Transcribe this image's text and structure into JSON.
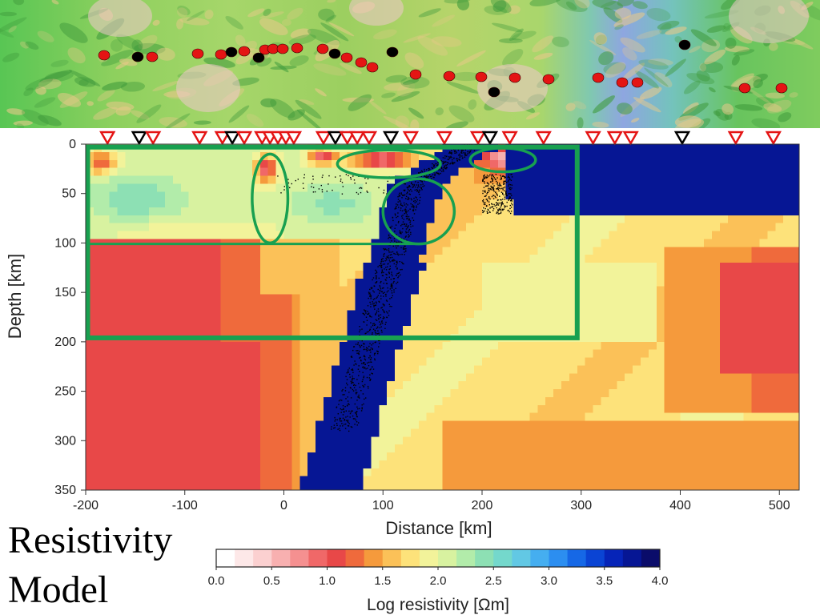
{
  "chart_data": {
    "type": "heatmap",
    "title": "Resistivity Model",
    "title_lines": [
      "Resistivity",
      "Model"
    ],
    "xlabel": "Distance [km]",
    "ylabel": "Depth [km]",
    "xlim": [
      -200,
      520
    ],
    "ylim": [
      350,
      0
    ],
    "x_ticks": [
      -200,
      -100,
      0,
      100,
      200,
      300,
      400,
      500
    ],
    "y_ticks": [
      0,
      50,
      100,
      150,
      200,
      250,
      300,
      350
    ],
    "colorbar": {
      "label": "Log resistivity [Ωm]",
      "range": [
        0.0,
        4.0
      ],
      "ticks": [
        "0.0",
        "0.5",
        "1.0",
        "1.5",
        "2.0",
        "2.5",
        "3.0",
        "3.5",
        "4.0"
      ],
      "colors": [
        "#ffffff",
        "#fde8e8",
        "#fbd0d0",
        "#f8b0b0",
        "#f59090",
        "#f06868",
        "#e84848",
        "#ef6a3c",
        "#f59a3c",
        "#fbc158",
        "#fde27a",
        "#f2f39a",
        "#d8f2a0",
        "#b2ecaa",
        "#8de0b4",
        "#74d8cc",
        "#62c8e4",
        "#45aef0",
        "#2c8ef0",
        "#1668e6",
        "#0a44d4",
        "#0624b8",
        "#061694",
        "#0a0c6a"
      ]
    },
    "stations": [
      {
        "x": -178,
        "type": "red"
      },
      {
        "x": -146,
        "type": "black"
      },
      {
        "x": -132,
        "type": "red"
      },
      {
        "x": -85,
        "type": "red"
      },
      {
        "x": -62,
        "type": "red"
      },
      {
        "x": -52,
        "type": "black"
      },
      {
        "x": -40,
        "type": "red"
      },
      {
        "x": -22,
        "type": "red"
      },
      {
        "x": -14,
        "type": "red"
      },
      {
        "x": -6,
        "type": "red"
      },
      {
        "x": 2,
        "type": "red"
      },
      {
        "x": 10,
        "type": "red"
      },
      {
        "x": 40,
        "type": "red"
      },
      {
        "x": 52,
        "type": "black"
      },
      {
        "x": 64,
        "type": "red"
      },
      {
        "x": 74,
        "type": "red"
      },
      {
        "x": 86,
        "type": "red"
      },
      {
        "x": 108,
        "type": "black"
      },
      {
        "x": 128,
        "type": "red"
      },
      {
        "x": 162,
        "type": "red"
      },
      {
        "x": 196,
        "type": "red"
      },
      {
        "x": 208,
        "type": "black"
      },
      {
        "x": 228,
        "type": "red"
      },
      {
        "x": 262,
        "type": "red"
      },
      {
        "x": 312,
        "type": "red"
      },
      {
        "x": 334,
        "type": "red"
      },
      {
        "x": 350,
        "type": "red"
      },
      {
        "x": 402,
        "type": "black"
      },
      {
        "x": 456,
        "type": "red"
      },
      {
        "x": 494,
        "type": "red"
      }
    ],
    "ellipses": [
      {
        "cx": -14,
        "cy": 55,
        "rx": 18,
        "ry": 45
      },
      {
        "cx": 106,
        "cy": 20,
        "rx": 52,
        "ry": 14
      },
      {
        "cx": 221,
        "cy": 16,
        "rx": 33,
        "ry": 12
      },
      {
        "cx": 136,
        "cy": 68,
        "rx": 36,
        "ry": 33
      }
    ],
    "focus_box": {
      "x": [
        -198,
        296
      ],
      "y": [
        3,
        196
      ],
      "divider_y": 101,
      "divider_x": [
        -198,
        138
      ]
    },
    "grid": false
  }
}
